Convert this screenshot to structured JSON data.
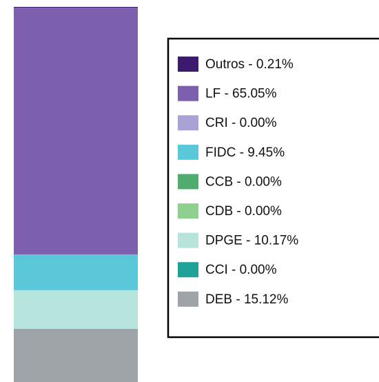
{
  "chart_data": {
    "type": "bar",
    "stacked": true,
    "ylim": [
      0,
      100
    ],
    "series": [
      {
        "name": "DEB - 15.12%",
        "color": "#9ea3a8",
        "values": [
          15.12
        ]
      },
      {
        "name": "CCI - 0.00%",
        "color": "#1fa398",
        "values": [
          0.0
        ]
      },
      {
        "name": "DPGE - 10.17%",
        "color": "#b6e3dc",
        "values": [
          10.17
        ]
      },
      {
        "name": "CDB - 0.00%",
        "color": "#8fcf90",
        "values": [
          0.0
        ]
      },
      {
        "name": "CCB - 0.00%",
        "color": "#4fac6f",
        "values": [
          0.0
        ]
      },
      {
        "name": "FIDC - 9.45%",
        "color": "#5bc8d9",
        "values": [
          9.45
        ]
      },
      {
        "name": "CRI - 0.00%",
        "color": "#a9a2d4",
        "values": [
          0.0
        ]
      },
      {
        "name": "LF - 65.05%",
        "color": "#7d60ad",
        "values": [
          65.05
        ]
      },
      {
        "name": "Outros - 0.21%",
        "color": "#3c1a6e",
        "values": [
          0.21
        ]
      }
    ]
  }
}
